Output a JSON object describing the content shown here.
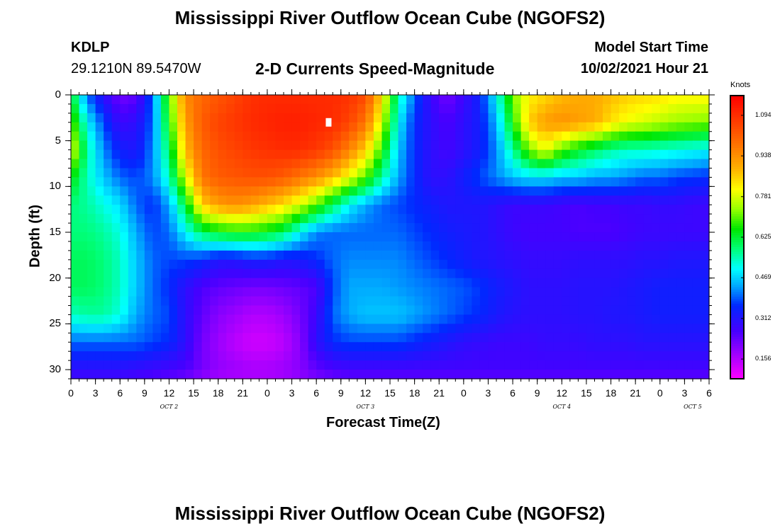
{
  "title": "Mississippi River Outflow Ocean Cube (NGOFS2)",
  "footer_title": "Mississippi River Outflow Ocean Cube (NGOFS2)",
  "station": {
    "id": "KDLP",
    "coords": "29.1210N  89.5470W"
  },
  "subtitle": "2-D Currents Speed-Magnitude",
  "model_start": {
    "label": "Model Start Time",
    "value": "10/02/2021 Hour 21"
  },
  "colorbar": {
    "unit": "Knots",
    "ticks": [
      {
        "value": 0.156,
        "label": "0.156"
      },
      {
        "value": 0.312,
        "label": "0.312"
      },
      {
        "value": 0.469,
        "label": "0.469"
      },
      {
        "value": 0.625,
        "label": "0.625"
      },
      {
        "value": 0.781,
        "label": "0.781"
      },
      {
        "value": 0.938,
        "label": "0.938"
      },
      {
        "value": 1.094,
        "label": "1.094"
      }
    ],
    "range": [
      0.08,
      1.17
    ]
  },
  "chart_data": {
    "type": "heatmap",
    "title": "2-D Currents Speed-Magnitude",
    "xlabel": "Forecast Time(Z)",
    "ylabel": "Depth (ft)",
    "x_tick_labels": [
      "0",
      "3",
      "6",
      "9",
      "12",
      "15",
      "18",
      "21",
      "0",
      "3",
      "6",
      "9",
      "12",
      "15",
      "18",
      "21",
      "0",
      "3",
      "6",
      "9",
      "12",
      "15",
      "18",
      "21",
      "0",
      "3",
      "6"
    ],
    "day_labels": [
      {
        "label": "OCT 2",
        "x_hours": 12
      },
      {
        "label": "OCT 3",
        "x_hours": 36
      },
      {
        "label": "OCT 4",
        "x_hours": 60
      },
      {
        "label": "OCT 5",
        "x_hours": 76
      }
    ],
    "xlim_hours": [
      0,
      78
    ],
    "ylim_ft": [
      0,
      31
    ],
    "y_ticks": [
      0,
      5,
      10,
      15,
      20,
      25,
      30
    ],
    "y_inverted": true,
    "x_hours": [
      0,
      2,
      4,
      6,
      8,
      10,
      12,
      14,
      16,
      18,
      20,
      22,
      24,
      26,
      28,
      30,
      32,
      34,
      36,
      38,
      40,
      42,
      44,
      46,
      48,
      50,
      52,
      54,
      56,
      58,
      60,
      62,
      64,
      66,
      68,
      70,
      72,
      74,
      76,
      78
    ],
    "depth_ft": [
      0,
      3,
      6,
      9,
      12,
      15,
      18,
      21,
      24,
      27,
      30,
      31
    ],
    "values_knots": [
      [
        0.64,
        0.4,
        0.3,
        0.22,
        0.24,
        0.4,
        0.7,
        0.95,
        1.0,
        1.03,
        1.06,
        1.09,
        1.1,
        1.1,
        1.1,
        1.1,
        1.1,
        1.09,
        1.05,
        0.85,
        0.55,
        0.4,
        0.28,
        0.22,
        0.28,
        0.35,
        0.5,
        0.72,
        0.82,
        0.85,
        0.88,
        0.9,
        0.9,
        0.88,
        0.86,
        0.85,
        0.84,
        0.82,
        0.82,
        0.82
      ],
      [
        0.72,
        0.5,
        0.38,
        0.28,
        0.3,
        0.4,
        0.66,
        0.92,
        1.02,
        1.06,
        1.08,
        1.1,
        1.11,
        1.12,
        1.12,
        1.11,
        1.1,
        1.06,
        0.98,
        0.78,
        0.5,
        0.36,
        0.3,
        0.26,
        0.3,
        0.34,
        0.45,
        0.66,
        0.86,
        0.92,
        0.94,
        0.92,
        0.9,
        0.84,
        0.8,
        0.78,
        0.76,
        0.74,
        0.73,
        0.72
      ],
      [
        0.8,
        0.56,
        0.42,
        0.34,
        0.32,
        0.42,
        0.6,
        0.88,
        1.0,
        1.04,
        1.06,
        1.08,
        1.09,
        1.1,
        1.1,
        1.08,
        1.04,
        0.96,
        0.86,
        0.68,
        0.46,
        0.36,
        0.3,
        0.27,
        0.3,
        0.34,
        0.42,
        0.56,
        0.72,
        0.8,
        0.7,
        0.64,
        0.6,
        0.56,
        0.54,
        0.54,
        0.53,
        0.52,
        0.51,
        0.5
      ],
      [
        0.66,
        0.54,
        0.46,
        0.4,
        0.38,
        0.42,
        0.54,
        0.78,
        0.98,
        1.02,
        1.03,
        1.04,
        1.04,
        1.02,
        0.98,
        0.94,
        0.88,
        0.8,
        0.7,
        0.56,
        0.44,
        0.36,
        0.3,
        0.3,
        0.34,
        0.38,
        0.42,
        0.46,
        0.48,
        0.48,
        0.46,
        0.46,
        0.44,
        0.44,
        0.42,
        0.4,
        0.4,
        0.38,
        0.37,
        0.36
      ],
      [
        0.58,
        0.56,
        0.52,
        0.48,
        0.4,
        0.36,
        0.44,
        0.62,
        0.86,
        0.92,
        0.94,
        0.92,
        0.88,
        0.84,
        0.78,
        0.7,
        0.6,
        0.5,
        0.44,
        0.4,
        0.38,
        0.36,
        0.34,
        0.32,
        0.32,
        0.32,
        0.3,
        0.28,
        0.28,
        0.28,
        0.27,
        0.26,
        0.27,
        0.27,
        0.28,
        0.28,
        0.29,
        0.29,
        0.28,
        0.28
      ],
      [
        0.58,
        0.58,
        0.56,
        0.52,
        0.44,
        0.38,
        0.4,
        0.5,
        0.6,
        0.64,
        0.66,
        0.66,
        0.64,
        0.6,
        0.5,
        0.42,
        0.4,
        0.4,
        0.4,
        0.4,
        0.4,
        0.38,
        0.36,
        0.34,
        0.33,
        0.32,
        0.3,
        0.28,
        0.27,
        0.27,
        0.27,
        0.26,
        0.26,
        0.26,
        0.27,
        0.28,
        0.28,
        0.28,
        0.28,
        0.28
      ],
      [
        0.6,
        0.6,
        0.58,
        0.54,
        0.46,
        0.4,
        0.38,
        0.38,
        0.36,
        0.32,
        0.32,
        0.34,
        0.34,
        0.32,
        0.33,
        0.36,
        0.4,
        0.42,
        0.42,
        0.42,
        0.42,
        0.4,
        0.38,
        0.36,
        0.34,
        0.32,
        0.31,
        0.3,
        0.29,
        0.29,
        0.29,
        0.3,
        0.3,
        0.3,
        0.3,
        0.31,
        0.31,
        0.32,
        0.32,
        0.32
      ],
      [
        0.6,
        0.6,
        0.58,
        0.54,
        0.46,
        0.4,
        0.36,
        0.3,
        0.26,
        0.24,
        0.23,
        0.22,
        0.22,
        0.23,
        0.24,
        0.26,
        0.38,
        0.44,
        0.44,
        0.44,
        0.43,
        0.42,
        0.41,
        0.4,
        0.39,
        0.37,
        0.34,
        0.32,
        0.3,
        0.3,
        0.3,
        0.31,
        0.31,
        0.31,
        0.32,
        0.33,
        0.34,
        0.34,
        0.34,
        0.34
      ],
      [
        0.54,
        0.56,
        0.56,
        0.52,
        0.44,
        0.4,
        0.38,
        0.3,
        0.24,
        0.2,
        0.18,
        0.16,
        0.16,
        0.18,
        0.22,
        0.28,
        0.4,
        0.44,
        0.46,
        0.46,
        0.46,
        0.44,
        0.42,
        0.4,
        0.38,
        0.36,
        0.33,
        0.31,
        0.3,
        0.3,
        0.3,
        0.31,
        0.31,
        0.32,
        0.32,
        0.33,
        0.34,
        0.34,
        0.34,
        0.34
      ],
      [
        0.4,
        0.4,
        0.4,
        0.4,
        0.4,
        0.38,
        0.36,
        0.3,
        0.22,
        0.18,
        0.15,
        0.13,
        0.13,
        0.15,
        0.2,
        0.3,
        0.36,
        0.38,
        0.38,
        0.38,
        0.38,
        0.36,
        0.34,
        0.32,
        0.3,
        0.29,
        0.28,
        0.28,
        0.28,
        0.29,
        0.29,
        0.29,
        0.3,
        0.3,
        0.3,
        0.31,
        0.31,
        0.31,
        0.31,
        0.31
      ],
      [
        0.3,
        0.3,
        0.3,
        0.3,
        0.29,
        0.28,
        0.27,
        0.26,
        0.22,
        0.19,
        0.18,
        0.17,
        0.17,
        0.18,
        0.2,
        0.24,
        0.26,
        0.27,
        0.27,
        0.27,
        0.27,
        0.27,
        0.27,
        0.27,
        0.27,
        0.27,
        0.27,
        0.27,
        0.27,
        0.27,
        0.27,
        0.27,
        0.27,
        0.27,
        0.27,
        0.27,
        0.27,
        0.27,
        0.27,
        0.27
      ],
      [
        0.27,
        0.27,
        0.27,
        0.27,
        0.26,
        0.25,
        0.24,
        0.22,
        0.19,
        0.17,
        0.16,
        0.16,
        0.16,
        0.17,
        0.19,
        0.21,
        0.23,
        0.24,
        0.24,
        0.24,
        0.24,
        0.24,
        0.24,
        0.24,
        0.24,
        0.24,
        0.24,
        0.24,
        0.24,
        0.24,
        0.24,
        0.24,
        0.24,
        0.24,
        0.24,
        0.24,
        0.24,
        0.24,
        0.24,
        0.24
      ]
    ],
    "marker": {
      "x_hours": 31.5,
      "depth_ft": 3.0,
      "color": "#ffffff"
    },
    "vmin": 0.08,
    "vmax": 1.17
  }
}
